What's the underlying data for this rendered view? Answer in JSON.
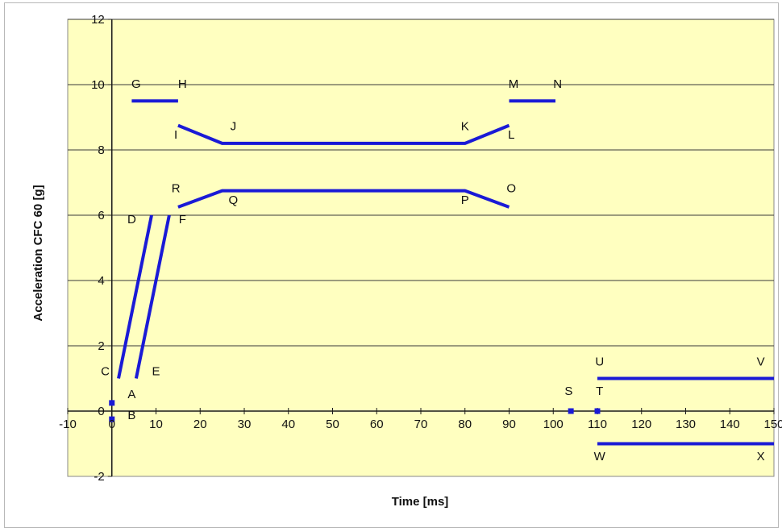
{
  "chart_data": {
    "type": "line",
    "title": "",
    "xlabel": "Time [ms]",
    "ylabel": "Acceleration CFC 60 [g]",
    "xlim": [
      -10,
      150
    ],
    "ylim": [
      -2,
      12
    ],
    "x_ticks": [
      -10,
      0,
      10,
      20,
      30,
      40,
      50,
      60,
      70,
      80,
      90,
      100,
      110,
      120,
      130,
      140,
      150
    ],
    "y_ticks": [
      -2,
      0,
      2,
      4,
      6,
      8,
      10,
      12
    ],
    "grid": "horizontal",
    "legend": "none",
    "colors": {
      "plot_background": "#ffffc0",
      "series": "#1a1ad6",
      "grid": "#3a3a3a",
      "axis": "#1a1a1a"
    },
    "series": [
      {
        "points": [
          [
            4.5,
            9.5
          ],
          [
            15,
            9.5
          ]
        ]
      },
      {
        "points": [
          [
            15,
            8.75
          ],
          [
            25,
            8.2
          ],
          [
            80,
            8.2
          ],
          [
            90,
            8.75
          ]
        ]
      },
      {
        "points": [
          [
            90,
            9.5
          ],
          [
            100.5,
            9.5
          ]
        ]
      },
      {
        "points": [
          [
            15,
            6.25
          ],
          [
            25,
            6.75
          ],
          [
            80,
            6.75
          ],
          [
            90,
            6.25
          ]
        ]
      },
      {
        "points": [
          [
            1.5,
            1.0
          ],
          [
            9,
            6.0
          ]
        ]
      },
      {
        "points": [
          [
            5.5,
            1.0
          ],
          [
            13,
            6.0
          ]
        ]
      },
      {
        "points": [
          [
            110,
            1.0
          ],
          [
            150,
            1.0
          ]
        ]
      },
      {
        "points": [
          [
            110,
            -1.0
          ],
          [
            150,
            -1.0
          ]
        ]
      }
    ],
    "markers": [
      {
        "x": 0,
        "y": 0.25
      },
      {
        "x": 0,
        "y": -0.25
      },
      {
        "x": 104,
        "y": 0
      },
      {
        "x": 110,
        "y": 0
      }
    ],
    "annotations": [
      {
        "text": "A",
        "x": 4.5,
        "y": 0.4
      },
      {
        "text": "B",
        "x": 4.5,
        "y": -0.25
      },
      {
        "text": "C",
        "x": -1.5,
        "y": 1.1
      },
      {
        "text": "D",
        "x": 4.5,
        "y": 5.75
      },
      {
        "text": "E",
        "x": 10,
        "y": 1.1
      },
      {
        "text": "F",
        "x": 16,
        "y": 5.75
      },
      {
        "text": "G",
        "x": 5.5,
        "y": 9.9
      },
      {
        "text": "H",
        "x": 16,
        "y": 9.9
      },
      {
        "text": "I",
        "x": 14.5,
        "y": 8.35
      },
      {
        "text": "J",
        "x": 27.5,
        "y": 8.6
      },
      {
        "text": "K",
        "x": 80,
        "y": 8.6
      },
      {
        "text": "L",
        "x": 90.5,
        "y": 8.35
      },
      {
        "text": "M",
        "x": 91,
        "y": 9.9
      },
      {
        "text": "N",
        "x": 101,
        "y": 9.9
      },
      {
        "text": "R",
        "x": 14.5,
        "y": 6.7
      },
      {
        "text": "Q",
        "x": 27.5,
        "y": 6.35
      },
      {
        "text": "P",
        "x": 80,
        "y": 6.35
      },
      {
        "text": "O",
        "x": 90.5,
        "y": 6.7
      },
      {
        "text": "S",
        "x": 103.5,
        "y": 0.5
      },
      {
        "text": "T",
        "x": 110.5,
        "y": 0.5
      },
      {
        "text": "U",
        "x": 110.5,
        "y": 1.4
      },
      {
        "text": "V",
        "x": 147,
        "y": 1.4
      },
      {
        "text": "W",
        "x": 110.5,
        "y": -1.5
      },
      {
        "text": "X",
        "x": 147,
        "y": -1.5
      }
    ]
  }
}
